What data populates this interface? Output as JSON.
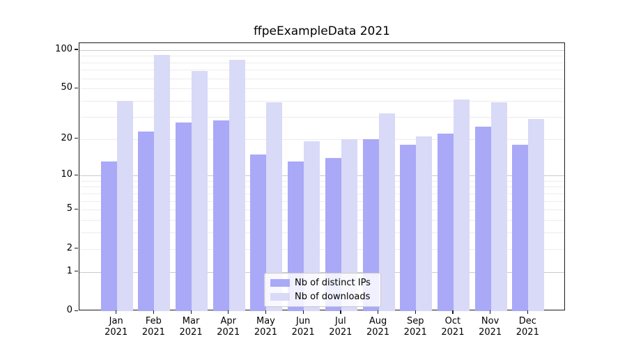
{
  "title": "ffpeExampleData 2021",
  "colors": {
    "ips_bar": "#a9a9f8",
    "downloads_bar": "#d9d9f8",
    "grid_minor": "#ececec",
    "grid_major": "#c9c9c9",
    "axis": "#1a1a1a",
    "legend_border": "#cccccc",
    "background": "#ffffff"
  },
  "legend": {
    "items": [
      {
        "label": "Nb of distinct IPs",
        "color_key": "ips_bar"
      },
      {
        "label": "Nb of downloads",
        "color_key": "downloads_bar"
      }
    ]
  },
  "chart_data": {
    "type": "bar",
    "title": "ffpeExampleData 2021",
    "xlabel": "",
    "ylabel": "",
    "categories": [
      "Jan",
      "Feb",
      "Mar",
      "Apr",
      "May",
      "Jun",
      "Jul",
      "Aug",
      "Sep",
      "Oct",
      "Nov",
      "Dec"
    ],
    "year": "2021",
    "series": [
      {
        "name": "Nb of distinct IPs",
        "color_key": "ips_bar",
        "values": [
          13,
          23,
          27,
          28,
          15,
          13,
          14,
          20,
          18,
          22,
          25,
          18
        ]
      },
      {
        "name": "Nb of downloads",
        "color_key": "downloads_bar",
        "values": [
          40,
          91,
          69,
          84,
          39,
          19,
          20,
          32,
          21,
          41,
          39,
          29
        ]
      }
    ],
    "yscale": "log10(1+y)",
    "ylim": [
      0,
      113
    ],
    "yticks": [
      0,
      1,
      2,
      5,
      10,
      20,
      50,
      100
    ],
    "gridlines_minor": [
      2,
      3,
      4,
      5,
      6,
      7,
      8,
      9,
      20,
      30,
      40,
      50,
      60,
      70,
      80,
      90
    ],
    "gridlines_major": [
      1,
      10,
      100
    ],
    "grid": true,
    "legend_position": "inside-bottom-center"
  }
}
